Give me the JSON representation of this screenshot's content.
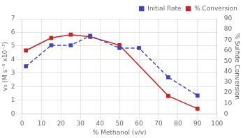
{
  "chart_data": {
    "type": "line",
    "xlabel": "% Methanol (v/v)",
    "ylabel": "v₀ (M s⁻¹ x10⁻⁷)",
    "y2label": "% Sulfide Conversion",
    "xlim": [
      0,
      100
    ],
    "xticks": [
      0,
      10,
      20,
      30,
      40,
      50,
      60,
      70,
      80,
      90,
      100
    ],
    "ylim": [
      0,
      7
    ],
    "yticks": [
      0,
      1,
      2,
      3,
      4,
      5,
      6,
      7
    ],
    "y2lim": [
      0,
      90
    ],
    "y2ticks": [
      0,
      10,
      20,
      30,
      40,
      50,
      60,
      70,
      80,
      90
    ],
    "grid": true,
    "legend": "upper right",
    "series": [
      {
        "name": "Initial Rate",
        "color": "#4444bb",
        "marker": "square",
        "line_style": "dashed",
        "x": [
          2,
          15,
          25,
          35,
          50,
          60,
          75,
          90
        ],
        "values": [
          3.5,
          5.05,
          5.05,
          5.75,
          4.85,
          4.85,
          2.7,
          1.35
        ]
      },
      {
        "name": "% Conversion",
        "color": "#cc2222",
        "marker": "square",
        "line_style": "solid",
        "axis": "y2",
        "x": [
          2,
          15,
          25,
          35,
          50,
          75,
          90
        ],
        "values": [
          60,
          72,
          75,
          73,
          65,
          17,
          5
        ]
      }
    ]
  }
}
